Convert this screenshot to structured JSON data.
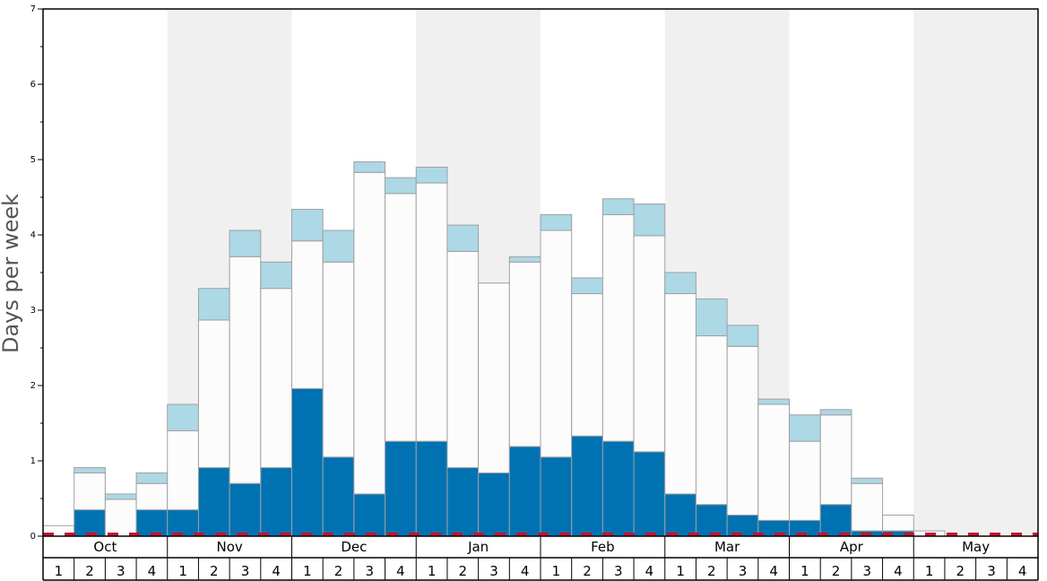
{
  "chart_data": {
    "type": "bar",
    "stacked": true,
    "ylabel": "Days per week",
    "ylim": [
      0,
      7
    ],
    "yticks": [
      "0",
      "1",
      "2",
      "3",
      "4",
      "5",
      "6",
      "7"
    ],
    "months": [
      "Oct",
      "Nov",
      "Dec",
      "Jan",
      "Feb",
      "Mar",
      "Apr",
      "May"
    ],
    "weeks": [
      "1",
      "2",
      "3",
      "4"
    ],
    "shaded_months": [
      "Nov",
      "Jan",
      "Mar",
      "May"
    ],
    "colors": {
      "series_1": "#0072b2",
      "series_2": "#fcfcfc",
      "series_3": "#add8e6",
      "baseline": "#c8102e",
      "shade": "#f0f0f0",
      "bar_edge": "#a0a0a0"
    },
    "series": [
      {
        "values": [
          0,
          0.35,
          0,
          0.35,
          0.35,
          0.91,
          0.7,
          0.91,
          1.96,
          1.05,
          0.56,
          1.26,
          1.26,
          0.91,
          0.84,
          1.19,
          1.05,
          1.33,
          1.26,
          1.12,
          0.56,
          0.42,
          0.28,
          0.21,
          0.21,
          0.42,
          0.07,
          0.07,
          0,
          0,
          0,
          0
        ]
      },
      {
        "values": [
          0.14,
          0.49,
          0.49,
          0.35,
          1.05,
          1.96,
          3.01,
          2.38,
          1.96,
          2.59,
          4.27,
          3.29,
          3.43,
          2.87,
          2.52,
          2.45,
          3.01,
          1.89,
          3.01,
          2.87,
          2.66,
          2.24,
          2.24,
          1.54,
          1.05,
          1.19,
          0.63,
          0.21,
          0.07,
          0,
          0,
          0
        ]
      },
      {
        "values": [
          0,
          0.07,
          0.07,
          0.14,
          0.35,
          0.42,
          0.35,
          0.35,
          0.42,
          0.42,
          0.14,
          0.21,
          0.21,
          0.35,
          0,
          0.07,
          0.21,
          0.21,
          0.21,
          0.42,
          0.28,
          0.49,
          0.28,
          0.07,
          0.35,
          0.07,
          0.07,
          0,
          0,
          0,
          0,
          0
        ]
      }
    ]
  }
}
